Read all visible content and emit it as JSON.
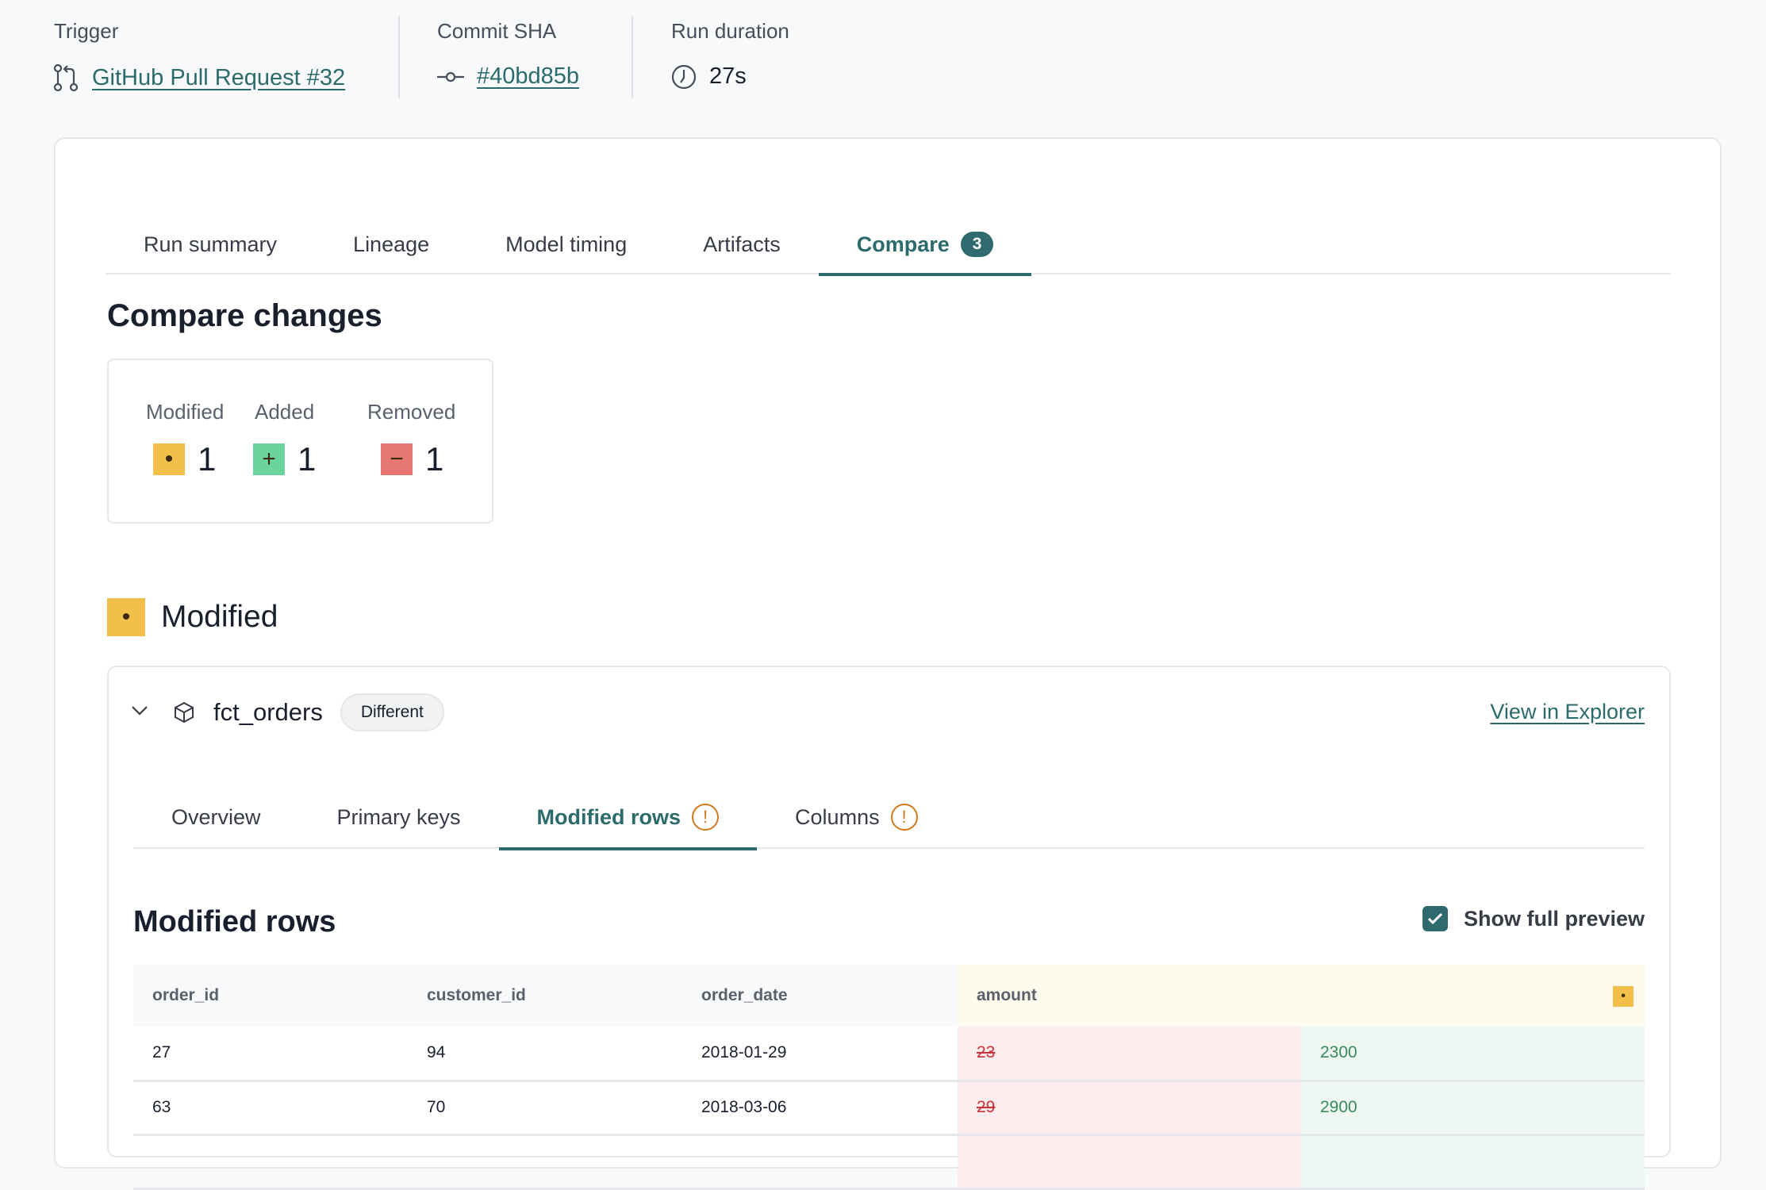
{
  "meta": {
    "trigger": {
      "label": "Trigger",
      "value": "GitHub Pull Request #32"
    },
    "commit": {
      "label": "Commit SHA",
      "value": "#40bd85b"
    },
    "duration": {
      "label": "Run duration",
      "value": "27s"
    }
  },
  "tabs": [
    {
      "label": "Run summary"
    },
    {
      "label": "Lineage"
    },
    {
      "label": "Model timing"
    },
    {
      "label": "Artifacts"
    },
    {
      "label": "Compare",
      "badge": "3",
      "active": true
    }
  ],
  "compare": {
    "title": "Compare changes",
    "summary": [
      {
        "label": "Modified",
        "count": "1",
        "color": "#f2c04a"
      },
      {
        "label": "Added",
        "count": "1",
        "color": "#6bd39c"
      },
      {
        "label": "Removed",
        "count": "1",
        "color": "#e67672"
      }
    ],
    "section_title": "Modified",
    "model": {
      "name": "fct_orders",
      "status": "Different",
      "explorer_link": "View in Explorer"
    },
    "subtabs": [
      {
        "label": "Overview"
      },
      {
        "label": "Primary keys"
      },
      {
        "label": "Modified rows",
        "warning": true,
        "active": true
      },
      {
        "label": "Columns",
        "warning": true
      }
    ],
    "modified_rows": {
      "title": "Modified rows",
      "show_full_preview": {
        "label": "Show full preview",
        "checked": true
      },
      "columns": [
        "order_id",
        "customer_id",
        "order_date",
        "amount"
      ],
      "rows": [
        {
          "order_id": "27",
          "customer_id": "94",
          "order_date": "2018-01-29",
          "amount_old": "23",
          "amount_new": "2300"
        },
        {
          "order_id": "63",
          "customer_id": "70",
          "order_date": "2018-03-06",
          "amount_old": "29",
          "amount_new": "2900"
        }
      ]
    }
  }
}
